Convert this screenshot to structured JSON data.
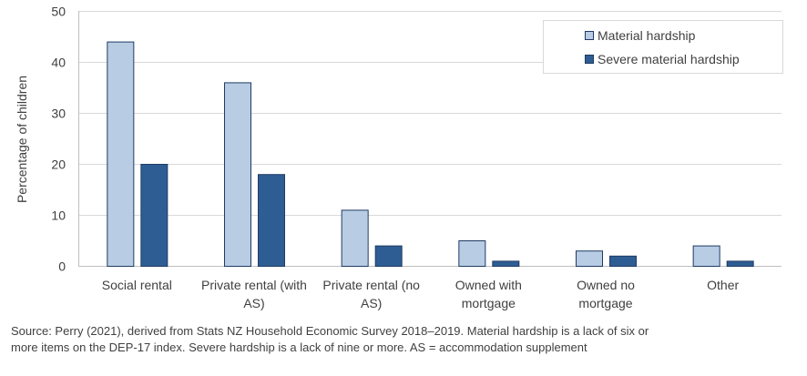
{
  "chart_data": {
    "type": "bar",
    "title": "",
    "xlabel": "",
    "ylabel": "Percentage of children",
    "ylim": [
      0,
      50
    ],
    "yticks": [
      0,
      10,
      20,
      30,
      40,
      50
    ],
    "categories": [
      [
        "Social rental"
      ],
      [
        "Private rental (with",
        "AS)"
      ],
      [
        "Private rental (no",
        "AS)"
      ],
      [
        "Owned with",
        "mortgage"
      ],
      [
        "Owned no",
        "mortgage"
      ],
      [
        "Other"
      ]
    ],
    "series": [
      {
        "name": "Material hardship",
        "color": "#b8cce4",
        "values": [
          44,
          36,
          11,
          5,
          3,
          4
        ]
      },
      {
        "name": "Severe material hardship",
        "color": "#2e5d93",
        "values": [
          20,
          18,
          4,
          1,
          2,
          1
        ]
      }
    ],
    "grid": true,
    "legend_position": "top-right"
  },
  "source_note": "Source: Perry (2021), derived from Stats NZ Household Economic Survey 2018–2019. Material hardship is a lack of six or more items on the DEP-17 index. Severe hardship is a lack of nine or more. AS = accommodation supplement"
}
